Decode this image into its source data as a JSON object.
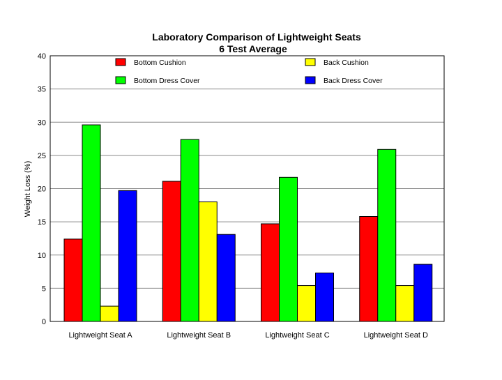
{
  "chart_data": {
    "type": "bar",
    "title": "Laboratory Comparison of Lightweight Seats",
    "subtitle": "6 Test Average",
    "xlabel": "",
    "ylabel": "Weight Loss (%)",
    "ylim": [
      0,
      40
    ],
    "yticks": [
      0,
      5,
      10,
      15,
      20,
      25,
      30,
      35,
      40
    ],
    "grid": true,
    "legend_position": "top",
    "categories": [
      "Lightweight Seat A",
      "Lightweight Seat B",
      "Lightweight Seat C",
      "Lightweight Seat D"
    ],
    "series": [
      {
        "name": "Bottom Cushion",
        "color": "#ff0000",
        "values": [
          12.4,
          21.1,
          14.7,
          15.8
        ]
      },
      {
        "name": "Bottom Dress Cover",
        "color": "#00ff00",
        "values": [
          29.6,
          27.4,
          21.7,
          25.9
        ]
      },
      {
        "name": "Back Cushion",
        "color": "#ffff00",
        "values": [
          2.3,
          18.0,
          5.4,
          5.4
        ]
      },
      {
        "name": "Back Dress Cover",
        "color": "#0000ff",
        "values": [
          19.7,
          13.1,
          7.3,
          8.6
        ]
      }
    ]
  }
}
